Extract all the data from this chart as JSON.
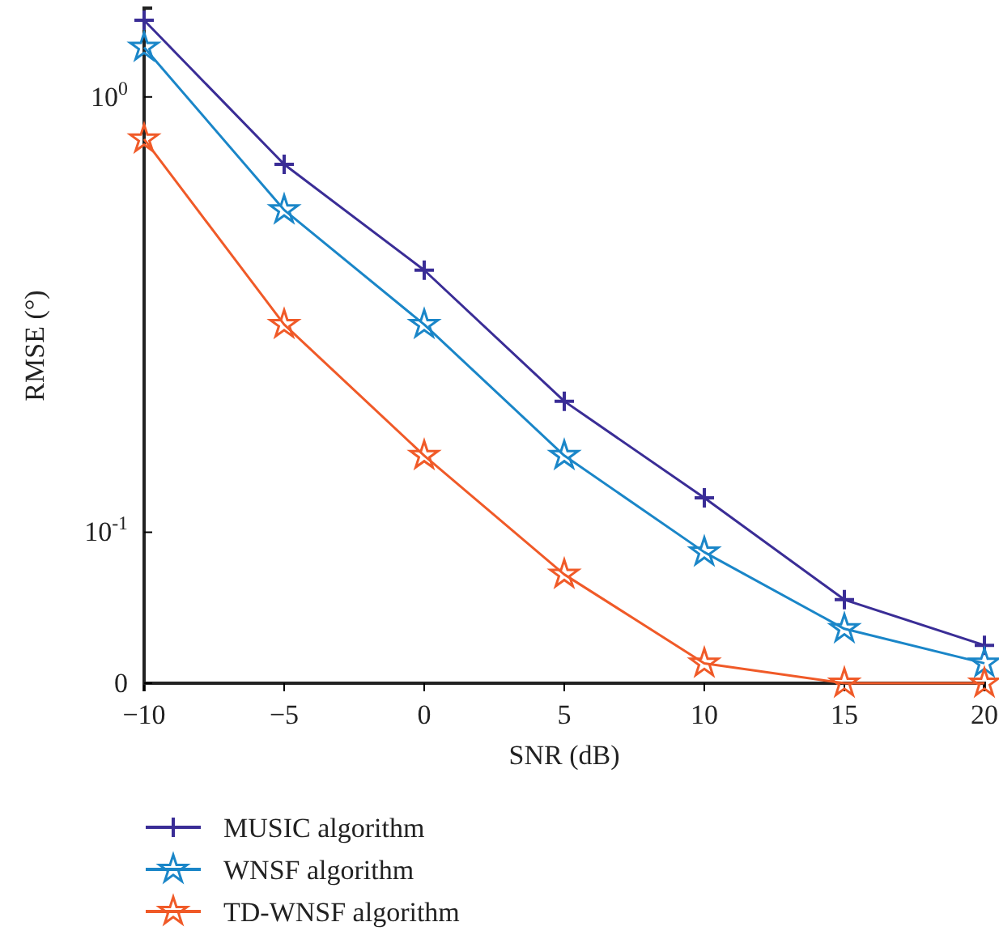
{
  "chart_data": {
    "type": "line",
    "xlabel": "SNR (dB)",
    "ylabel": "RMSE (°)",
    "x": [
      -10,
      -5,
      0,
      5,
      10,
      15,
      20
    ],
    "xlim": [
      -10,
      20
    ],
    "xticks": [
      {
        "value": -10,
        "label": "−10"
      },
      {
        "value": -5,
        "label": "−5"
      },
      0,
      5,
      10,
      15,
      20
    ],
    "log": true,
    "ylim": [
      0.045,
      1.6
    ],
    "yticks": [
      {
        "value": 0.045,
        "label": "0"
      },
      {
        "value": 0.1,
        "label": "10$^{-1}$"
      },
      {
        "value": 1,
        "label": "10$^{0}$"
      }
    ],
    "grid": false,
    "legend": "bottom",
    "line_style": "solid",
    "series": [
      {
        "name": "MUSIC algorithm",
        "color": "#3a2d96",
        "marker": "cross",
        "values": [
          1.5,
          0.7,
          0.4,
          0.2,
          0.12,
          0.07,
          0.055
        ]
      },
      {
        "name": "WNSF algorithm",
        "color": "#1a86c8",
        "marker": "star",
        "values": [
          1.3,
          0.55,
          0.3,
          0.15,
          0.09,
          0.06,
          0.05
        ]
      },
      {
        "name": "TD-WNSF algorithm",
        "color": "#f05a28",
        "marker": "star",
        "values": [
          0.8,
          0.3,
          0.15,
          0.08,
          0.05,
          0.045,
          0.045
        ]
      }
    ]
  }
}
